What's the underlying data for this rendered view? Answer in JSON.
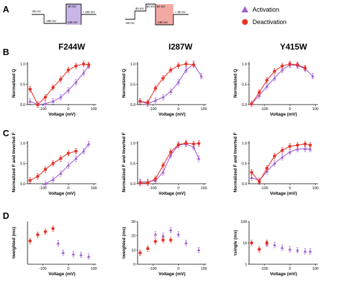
{
  "panel_labels": [
    "A",
    "B",
    "C",
    "D"
  ],
  "column_titles": [
    "F244W",
    "I287W",
    "Y415W"
  ],
  "legend": {
    "activation": "Activation",
    "deactivation": "Deactivation",
    "activation_color": "#a05ed1",
    "deactivation_color": "#e8332a"
  },
  "protocols": {
    "activation": {
      "hold": "-80 mV",
      "pre": "-180 mV",
      "step": "80 mV",
      "step_low": "-180 mV",
      "post": "+ 100 mV",
      "shade": "#c9b6e8"
    },
    "deactivation": {
      "hold": "-80 mV",
      "pre": "80 mV",
      "pre2": "80 mV",
      "step": "80 mV",
      "step_low": "-180 mV",
      "post": "+ 40 mV",
      "shade": "#f2a9a4"
    }
  },
  "chart_data": [
    {
      "id": "B-F244W",
      "type": "line",
      "title": "F244W",
      "xlabel": "Voltage (mV)",
      "ylabel": "Normalized Q",
      "xlim": [
        -160,
        110
      ],
      "xticks": [
        -100,
        0,
        100
      ],
      "ylim": [
        0,
        1.05
      ],
      "yticks": [
        0.0,
        0.5,
        1.0
      ],
      "yscale": "linear",
      "series": [
        {
          "name": "Activation",
          "x": [
            -150,
            -120,
            -90,
            -60,
            -30,
            0,
            30,
            60,
            80
          ],
          "y": [
            0.08,
            0.0,
            0.02,
            0.08,
            0.18,
            0.35,
            0.55,
            0.78,
            0.95
          ]
        },
        {
          "name": "Deactivation",
          "x": [
            -150,
            -120,
            -90,
            -60,
            -30,
            0,
            30,
            60,
            80
          ],
          "y": [
            0.38,
            0.0,
            0.18,
            0.42,
            0.62,
            0.85,
            0.95,
            1.0,
            0.98
          ]
        }
      ]
    },
    {
      "id": "B-I287W",
      "type": "line",
      "title": "I287W",
      "xlabel": "Voltage (mV)",
      "ylabel": "Normalized Q",
      "xlim": [
        -160,
        110
      ],
      "xticks": [
        -100,
        0,
        100
      ],
      "ylim": [
        0,
        1.05
      ],
      "yticks": [
        0.0,
        0.5,
        1.0
      ],
      "yscale": "linear",
      "series": [
        {
          "name": "Activation",
          "x": [
            -150,
            -120,
            -90,
            -60,
            -30,
            0,
            30,
            60,
            90
          ],
          "y": [
            0.08,
            0.02,
            0.1,
            0.18,
            0.32,
            0.55,
            0.85,
            1.0,
            0.7
          ]
        },
        {
          "name": "Deactivation",
          "x": [
            -150,
            -120,
            -90,
            -60,
            -30,
            0,
            30,
            60
          ],
          "y": [
            0.08,
            0.05,
            0.4,
            0.65,
            0.85,
            0.96,
            1.0,
            0.98
          ]
        }
      ]
    },
    {
      "id": "B-Y415W",
      "type": "line",
      "title": "Y415W",
      "xlabel": "Voltage (mV)",
      "ylabel": "Normalized Q",
      "xlim": [
        -160,
        110
      ],
      "xticks": [
        -100,
        0,
        100
      ],
      "ylim": [
        0,
        1.05
      ],
      "yticks": [
        0.0,
        0.5,
        1.0
      ],
      "yscale": "linear",
      "series": [
        {
          "name": "Activation",
          "x": [
            -150,
            -120,
            -90,
            -60,
            -30,
            0,
            30,
            60,
            90
          ],
          "y": [
            0.02,
            0.22,
            0.45,
            0.65,
            0.85,
            0.98,
            0.96,
            0.88,
            0.7
          ]
        },
        {
          "name": "Deactivation",
          "x": [
            -150,
            -120,
            -90,
            -60,
            -30,
            0,
            30,
            60
          ],
          "y": [
            0.02,
            0.3,
            0.6,
            0.82,
            0.95,
            1.0,
            0.98,
            0.9
          ]
        }
      ]
    },
    {
      "id": "C-F244W",
      "type": "line",
      "title": "F244W",
      "xlabel": "Voltage (mV)",
      "ylabel": "Normalized F and Inverted F",
      "xlim": [
        -160,
        110
      ],
      "xticks": [
        -100,
        0,
        100
      ],
      "ylim": [
        0,
        1.05
      ],
      "yticks": [
        0.0,
        0.5,
        1.0
      ],
      "yscale": "linear",
      "series": [
        {
          "name": "Activation",
          "x": [
            -90,
            -60,
            -30,
            0,
            30,
            60,
            80
          ],
          "y": [
            0.0,
            0.1,
            0.25,
            0.45,
            0.62,
            0.8,
            0.98
          ]
        },
        {
          "name": "Deactivation",
          "x": [
            -150,
            -120,
            -90,
            -60,
            -30,
            0,
            30
          ],
          "y": [
            0.08,
            0.18,
            0.35,
            0.5,
            0.62,
            0.75,
            0.8
          ]
        }
      ]
    },
    {
      "id": "C-I287W",
      "type": "line",
      "title": "I287W",
      "xlabel": "Voltage (mV)",
      "ylabel": "Normalized F and Inverted F",
      "xlim": [
        -160,
        110
      ],
      "xticks": [
        -100,
        0,
        100
      ],
      "ylim": [
        0,
        1.05
      ],
      "yticks": [
        0.0,
        0.5,
        1.0
      ],
      "yscale": "linear",
      "series": [
        {
          "name": "Activation",
          "x": [
            -150,
            -120,
            -90,
            -60,
            -30,
            0,
            30,
            60,
            80
          ],
          "y": [
            0.05,
            0.05,
            0.08,
            0.28,
            0.7,
            0.95,
            0.98,
            0.9,
            0.62
          ]
        },
        {
          "name": "Deactivation",
          "x": [
            -150,
            -120,
            -90,
            -60,
            -30,
            0,
            30,
            60,
            80
          ],
          "y": [
            0.02,
            0.02,
            0.12,
            0.45,
            0.78,
            0.96,
            1.0,
            0.98,
            0.99
          ]
        }
      ]
    },
    {
      "id": "C-Y415W",
      "type": "line",
      "title": "Y415W",
      "xlabel": "Voltage (mV)",
      "ylabel": "Normalized F and Inverted F",
      "xlim": [
        -160,
        110
      ],
      "xticks": [
        -100,
        0,
        100
      ],
      "ylim": [
        0,
        1.05
      ],
      "yticks": [
        0.0,
        0.5,
        1.0
      ],
      "yscale": "linear",
      "series": [
        {
          "name": "Activation",
          "x": [
            -150,
            -120,
            -90,
            -60,
            -30,
            0,
            30,
            60,
            80
          ],
          "y": [
            0.15,
            0.08,
            0.3,
            0.5,
            0.65,
            0.78,
            0.85,
            0.86,
            0.85
          ]
        },
        {
          "name": "Deactivation",
          "x": [
            -150,
            -120,
            -90,
            -60,
            -30,
            0,
            30,
            60,
            80
          ],
          "y": [
            0.28,
            0.05,
            0.38,
            0.68,
            0.82,
            0.92,
            0.95,
            0.98,
            0.95
          ]
        }
      ]
    },
    {
      "id": "D-F244W",
      "type": "scatter",
      "title": "F244W",
      "xlabel": "Voltage (mV)",
      "ylabel": "τweighted (ms)",
      "xlim": [
        -160,
        110
      ],
      "xticks": [
        -100,
        0,
        100
      ],
      "ylim": [
        0,
        55
      ],
      "yticks": [],
      "yscale": "linear",
      "series": [
        {
          "name": "Activation",
          "x": [
            -40,
            -20,
            20,
            50,
            80
          ],
          "y": [
            27,
            15,
            13,
            12,
            10
          ]
        },
        {
          "name": "Deactivation",
          "x": [
            -150,
            -120,
            -90,
            -60
          ],
          "y": [
            30,
            38,
            42,
            46
          ]
        }
      ]
    },
    {
      "id": "D-I287W",
      "type": "scatter",
      "title": "I287W",
      "xlabel": "Voltage (mV)",
      "ylabel": "τweighted (ms)",
      "xlim": [
        -160,
        110
      ],
      "xticks": [
        -100,
        0,
        100
      ],
      "ylim": [
        0,
        30
      ],
      "yticks": [
        0,
        10,
        20,
        30
      ],
      "yscale": "linear",
      "series": [
        {
          "name": "Activation",
          "x": [
            -90,
            -60,
            -30,
            0,
            30,
            80
          ],
          "y": [
            21,
            20,
            24,
            21,
            15,
            10
          ]
        },
        {
          "name": "Deactivation",
          "x": [
            -150,
            -120,
            -90,
            -60,
            -30
          ],
          "y": [
            8,
            11,
            16,
            17,
            17
          ]
        }
      ]
    },
    {
      "id": "D-Y415W",
      "type": "scatter",
      "title": "Y415W",
      "xlabel": "Voltage (mV)",
      "ylabel": "τsingle (ms)",
      "xlim": [
        -160,
        110
      ],
      "xticks": [
        -100,
        0,
        100
      ],
      "ylim": [
        1,
        100
      ],
      "yticks": [
        1,
        10,
        100
      ],
      "yscale": "log",
      "series": [
        {
          "name": "Activation",
          "x": [
            -90,
            -60,
            -30,
            0,
            30,
            60,
            80
          ],
          "y": [
            9,
            8,
            6,
            5,
            4.5,
            4,
            4
          ]
        },
        {
          "name": "Deactivation",
          "x": [
            -150,
            -120,
            -90
          ],
          "y": [
            10,
            5,
            10
          ]
        }
      ]
    }
  ]
}
